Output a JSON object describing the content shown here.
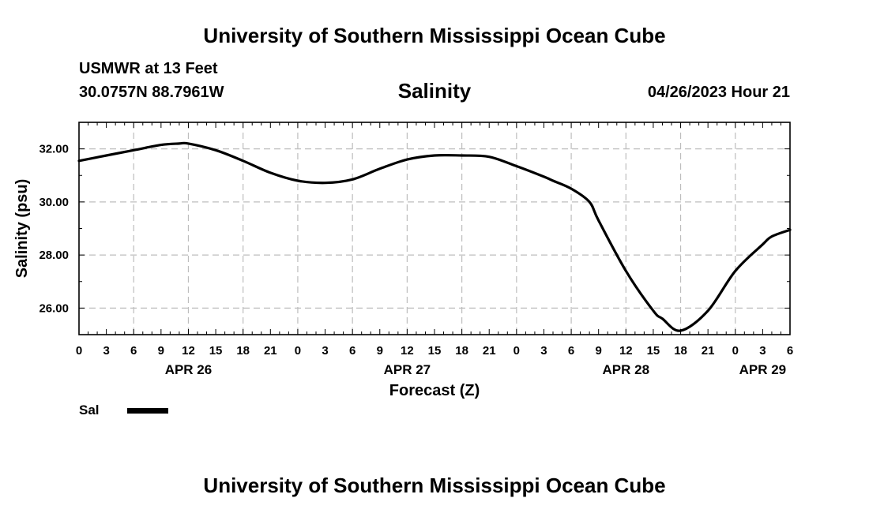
{
  "header": {
    "title": "University of Southern Mississippi Ocean Cube",
    "footer_title": "University of Southern Mississippi Ocean Cube",
    "station": "USMWR at 13 Feet",
    "coords": "30.0757N  88.7961W",
    "timestamp": "04/26/2023 Hour 21"
  },
  "legend": {
    "label": "Sal",
    "color": "#000000"
  },
  "chart_data": {
    "type": "line",
    "title": "Salinity",
    "xlabel": "Forecast (Z)",
    "ylabel": "Salinity (psu)",
    "x_unit": "hours from APR 26 00Z",
    "xlim": [
      0,
      78
    ],
    "ylim": [
      25,
      33
    ],
    "y_ticks": [
      "26.00",
      "28.00",
      "30.00",
      "32.00"
    ],
    "y_tick_values": [
      26,
      28,
      30,
      32
    ],
    "x_tick_hours": [
      0,
      3,
      6,
      9,
      12,
      15,
      18,
      21,
      24,
      27,
      30,
      33,
      36,
      39,
      42,
      45,
      48,
      51,
      54,
      57,
      60,
      63,
      66,
      69,
      72,
      75,
      78
    ],
    "x_tick_labels": [
      "0",
      "3",
      "6",
      "9",
      "12",
      "15",
      "18",
      "21",
      "0",
      "3",
      "6",
      "9",
      "12",
      "15",
      "18",
      "21",
      "0",
      "3",
      "6",
      "9",
      "12",
      "15",
      "18",
      "21",
      "0",
      "3",
      "6"
    ],
    "date_labels": [
      {
        "text": "APR 26",
        "hour": 12
      },
      {
        "text": "APR 27",
        "hour": 36
      },
      {
        "text": "APR 28",
        "hour": 60
      },
      {
        "text": "APR 29",
        "hour": 75
      }
    ],
    "grid": true,
    "series": [
      {
        "color": "#000000",
        "x": [
          0,
          3,
          6,
          9,
          11,
          12,
          15,
          18,
          21,
          24,
          27,
          30,
          33,
          36,
          39,
          42,
          45,
          48,
          51,
          52,
          54,
          56,
          57,
          60,
          63,
          64,
          66,
          69,
          72,
          75,
          76,
          78
        ],
        "y": [
          31.55,
          31.75,
          31.95,
          32.15,
          32.2,
          32.2,
          31.95,
          31.55,
          31.1,
          30.8,
          30.72,
          30.85,
          31.25,
          31.6,
          31.75,
          31.75,
          31.7,
          31.35,
          30.95,
          30.8,
          30.5,
          30.0,
          29.3,
          27.4,
          25.9,
          25.6,
          25.15,
          25.9,
          27.4,
          28.4,
          28.7,
          28.95
        ]
      }
    ]
  }
}
